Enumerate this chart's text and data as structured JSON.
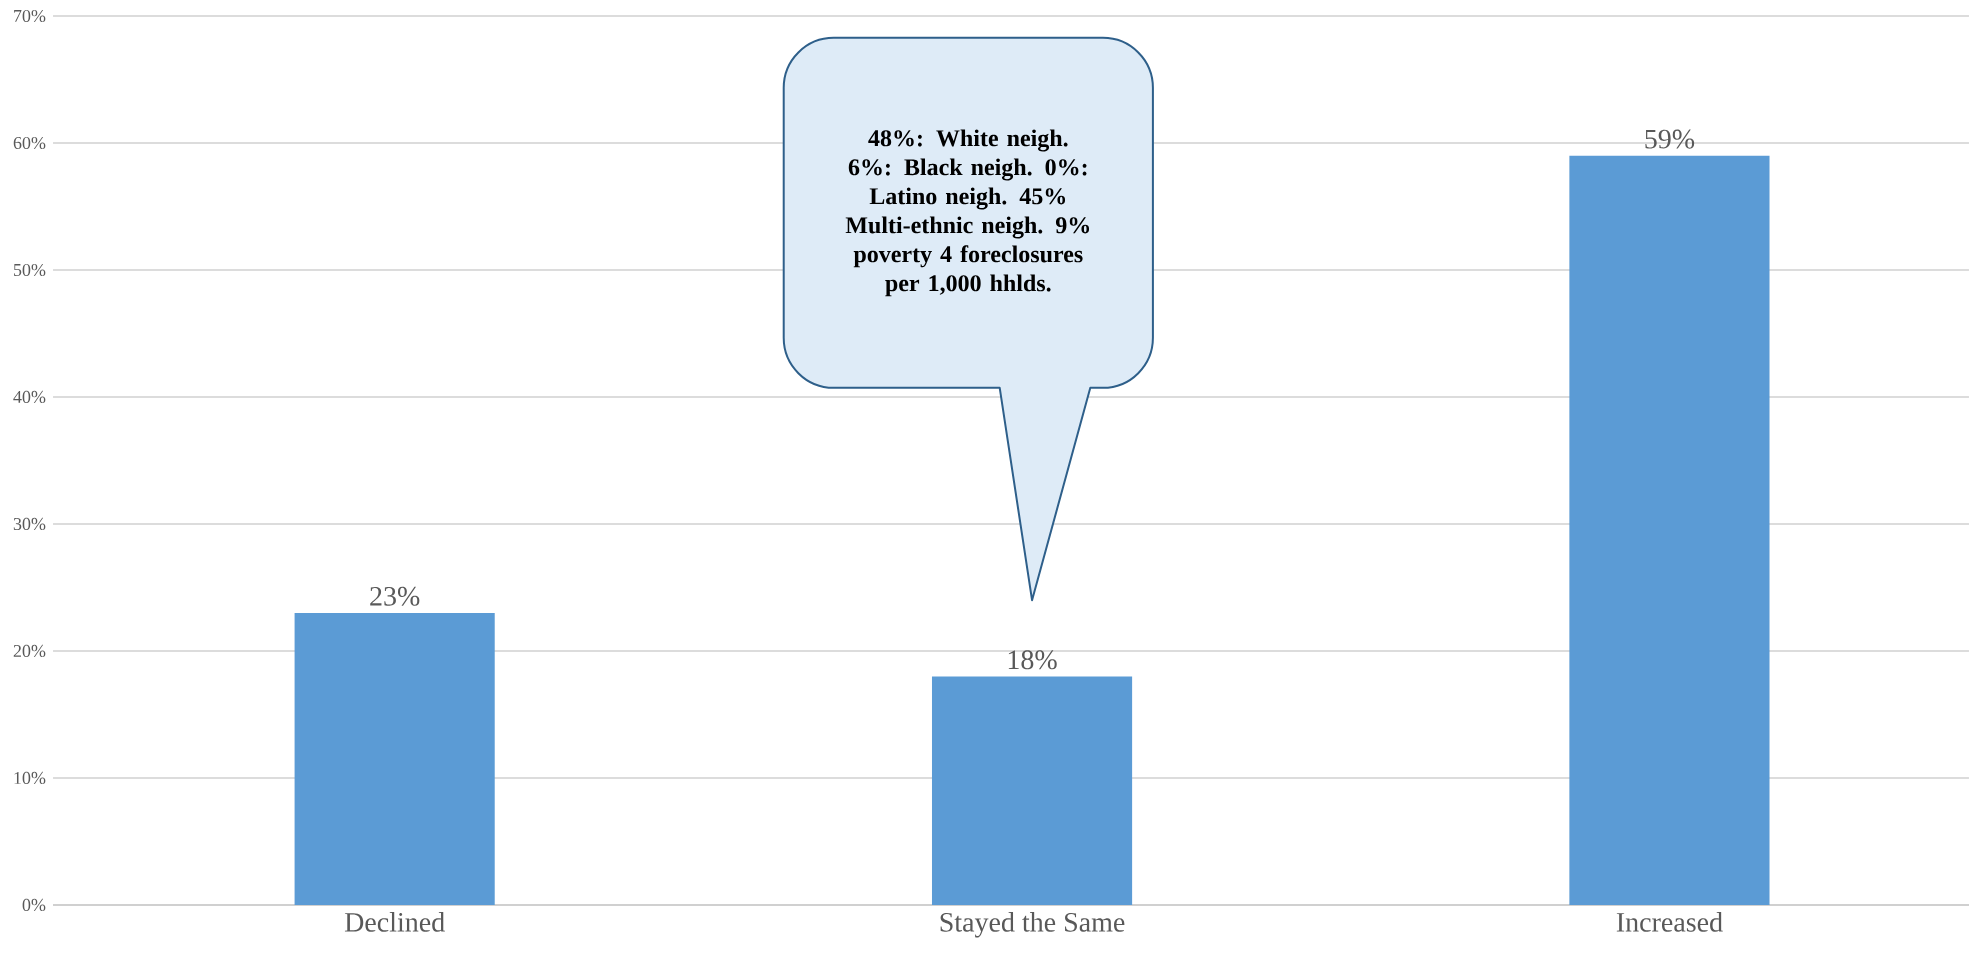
{
  "chart_data": {
    "type": "bar",
    "categories": [
      "Declined",
      "Stayed the Same",
      "Increased"
    ],
    "values": [
      23,
      18,
      59
    ],
    "value_labels": [
      "23%",
      "18%",
      "59%"
    ],
    "color": "#5b9bd5",
    "ylim": [
      0,
      70
    ],
    "yticks": [
      {
        "value": 0,
        "label": "0%"
      },
      {
        "value": 10,
        "label": "10%"
      },
      {
        "value": 20,
        "label": "20%"
      },
      {
        "value": 30,
        "label": "30%"
      },
      {
        "value": 40,
        "label": "40%"
      },
      {
        "value": 50,
        "label": "50%"
      },
      {
        "value": 60,
        "label": "60%"
      },
      {
        "value": 70,
        "label": "70%"
      }
    ],
    "grid": "y",
    "annotations": [
      "48%: White neigh. 6%: Black neigh. 0%: Latino neigh. 45% Multi-ethnic neigh. 9% poverty 4 foreclosures per 1,000 hhlds."
    ]
  }
}
